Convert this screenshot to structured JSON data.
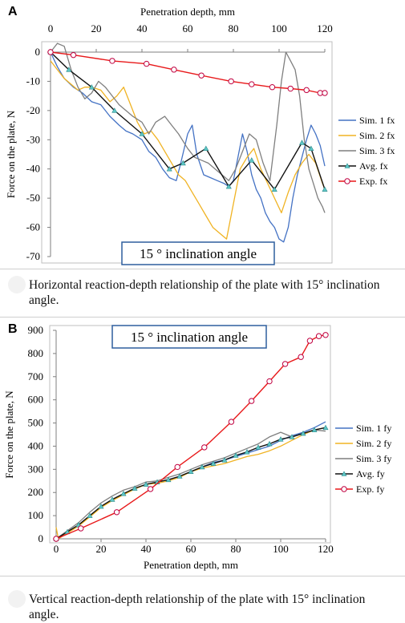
{
  "chart_data": [
    {
      "panel_label": "A",
      "type": "line",
      "xlabel": "Penetration depth, mm",
      "ylabel": "Force on the plate, N",
      "x_axis_position": "top",
      "xlim": [
        0,
        120
      ],
      "ylim": [
        -70,
        0
      ],
      "xticks": [
        0,
        20,
        40,
        60,
        80,
        100,
        120
      ],
      "yticks": [
        0,
        -10,
        -20,
        -30,
        -40,
        -50,
        -60,
        -70
      ],
      "grid": false,
      "legend_position": "right",
      "annotation": "15 ° inclination angle",
      "series": [
        {
          "name": "Sim. 1 fx",
          "color": "#4472c4",
          "marker": "none",
          "x": [
            0,
            3,
            6,
            10,
            14,
            18,
            22,
            26,
            30,
            33,
            36,
            40,
            43,
            46,
            49,
            52,
            55,
            57,
            60,
            62,
            64,
            67,
            70,
            73,
            76,
            78,
            80,
            82,
            84,
            86,
            88,
            90,
            92,
            94,
            96,
            98,
            100,
            102,
            104,
            106,
            108,
            110,
            112,
            114,
            116,
            118,
            120
          ],
          "y": [
            0,
            -5,
            -9,
            -12,
            -14,
            -17,
            -18,
            -22,
            -25,
            -27,
            -28,
            -30,
            -34,
            -36,
            -40,
            -43,
            -44,
            -38,
            -28,
            -25,
            -35,
            -42,
            -43,
            -44,
            -45,
            -46,
            -44,
            -36,
            -28,
            -34,
            -42,
            -47,
            -50,
            -55,
            -58,
            -60,
            -64,
            -65,
            -60,
            -50,
            -42,
            -36,
            -30,
            -25,
            -28,
            -32,
            -39
          ]
        },
        {
          "name": "Sim. 2 fx",
          "color": "#f0b323",
          "marker": "none",
          "x": [
            0,
            3,
            6,
            9,
            12,
            15,
            18,
            22,
            26,
            29,
            32,
            35,
            38,
            41,
            44,
            47,
            50,
            53,
            56,
            59,
            62,
            65,
            68,
            71,
            74,
            77,
            80,
            83,
            86,
            89,
            92,
            95,
            98,
            101,
            104,
            107,
            110,
            113,
            116,
            119,
            120
          ],
          "y": [
            -3,
            -6,
            -9,
            -11,
            -13,
            -12,
            -12,
            -13,
            -17,
            -15,
            -12,
            -18,
            -24,
            -28,
            -27,
            -30,
            -34,
            -38,
            -42,
            -44,
            -48,
            -52,
            -56,
            -60,
            -62,
            -64,
            -52,
            -40,
            -36,
            -33,
            -40,
            -45,
            -50,
            -55,
            -48,
            -42,
            -38,
            -35,
            -38,
            -45,
            -47
          ]
        },
        {
          "name": "Sim. 3 fx",
          "color": "#7f7f7f",
          "marker": "none",
          "x": [
            0,
            3,
            6,
            9,
            12,
            15,
            18,
            21,
            24,
            27,
            30,
            33,
            36,
            40,
            43,
            46,
            50,
            53,
            56,
            60,
            63,
            66,
            69,
            72,
            75,
            78,
            81,
            84,
            87,
            90,
            93,
            96,
            99,
            101,
            103,
            105,
            107,
            109,
            111,
            113,
            115,
            117,
            119,
            120
          ],
          "y": [
            0,
            3,
            2,
            -6,
            -12,
            -16,
            -14,
            -10,
            -12,
            -15,
            -18,
            -20,
            -22,
            -24,
            -28,
            -24,
            -22,
            -25,
            -28,
            -33,
            -36,
            -37,
            -38,
            -40,
            -42,
            -44,
            -40,
            -34,
            -28,
            -30,
            -38,
            -44,
            -25,
            -10,
            0,
            -3,
            -6,
            -15,
            -30,
            -40,
            -45,
            -50,
            -53,
            -55
          ]
        },
        {
          "name": "Avg. fx",
          "color": "#111111",
          "marker": "triangle",
          "x": [
            0,
            8,
            18,
            28,
            40,
            52,
            58,
            68,
            78,
            88,
            98,
            110,
            114,
            120
          ],
          "y": [
            0,
            -6,
            -12,
            -20,
            -28,
            -40,
            -38,
            -33,
            -46,
            -37,
            -47,
            -31,
            -33,
            -47
          ]
        },
        {
          "name": "Exp. fx",
          "color": "#e8191a",
          "marker": "circle",
          "x": [
            0,
            10,
            27,
            42,
            54,
            66,
            79,
            88,
            97,
            105,
            112,
            118,
            120
          ],
          "y": [
            0,
            -1,
            -3,
            -4,
            -6,
            -8,
            -10,
            -11,
            -12,
            -12.5,
            -13,
            -14,
            -14
          ]
        }
      ]
    },
    {
      "panel_label": "B",
      "type": "line",
      "xlabel": "Penetration depth, mm",
      "ylabel": "Force on the plate, N",
      "x_axis_position": "bottom",
      "xlim": [
        0,
        120
      ],
      "ylim": [
        0,
        900
      ],
      "xticks": [
        0,
        20,
        40,
        60,
        80,
        100,
        120
      ],
      "yticks": [
        0,
        100,
        200,
        300,
        400,
        500,
        600,
        700,
        800,
        900
      ],
      "grid": false,
      "legend_position": "right",
      "annotation": "15 ° inclination angle",
      "series": [
        {
          "name": "Sim. 1 fy",
          "color": "#4472c4",
          "marker": "none",
          "x": [
            0,
            5,
            10,
            15,
            20,
            25,
            30,
            35,
            40,
            45,
            50,
            55,
            60,
            65,
            70,
            75,
            80,
            85,
            90,
            95,
            100,
            105,
            110,
            115,
            120
          ],
          "y": [
            0,
            30,
            60,
            100,
            140,
            170,
            195,
            215,
            235,
            245,
            255,
            270,
            290,
            310,
            330,
            340,
            355,
            370,
            385,
            400,
            425,
            445,
            460,
            480,
            505
          ]
        },
        {
          "name": "Sim. 2 fy",
          "color": "#f0b323",
          "marker": "none",
          "x": [
            0,
            1,
            5,
            10,
            15,
            20,
            25,
            30,
            35,
            40,
            45,
            50,
            55,
            60,
            65,
            70,
            75,
            80,
            85,
            90,
            95,
            100,
            105,
            110,
            115,
            120
          ],
          "y": [
            50,
            0,
            25,
            55,
            95,
            135,
            165,
            190,
            215,
            235,
            240,
            250,
            265,
            290,
            305,
            315,
            325,
            340,
            355,
            365,
            380,
            400,
            425,
            450,
            470,
            480
          ]
        },
        {
          "name": "Sim. 3 fy",
          "color": "#7f7f7f",
          "marker": "none",
          "x": [
            0,
            5,
            10,
            15,
            20,
            25,
            30,
            35,
            40,
            45,
            50,
            55,
            60,
            65,
            70,
            75,
            80,
            85,
            90,
            95,
            100,
            105,
            110,
            115,
            120
          ],
          "y": [
            0,
            35,
            70,
            115,
            155,
            185,
            210,
            225,
            245,
            250,
            265,
            280,
            300,
            320,
            335,
            350,
            370,
            390,
            410,
            440,
            460,
            440,
            455,
            470,
            465
          ]
        },
        {
          "name": "Avg. fy",
          "color": "#111111",
          "marker": "triangle",
          "x": [
            0,
            5,
            10,
            15,
            20,
            25,
            30,
            35,
            40,
            45,
            50,
            55,
            60,
            65,
            70,
            75,
            80,
            85,
            90,
            95,
            100,
            105,
            110,
            115,
            120
          ],
          "y": [
            0,
            30,
            60,
            100,
            140,
            170,
            195,
            218,
            235,
            245,
            255,
            270,
            290,
            310,
            325,
            340,
            360,
            375,
            395,
            410,
            430,
            440,
            455,
            470,
            480
          ]
        },
        {
          "name": "Exp. fy",
          "color": "#e8191a",
          "marker": "circle",
          "x": [
            0,
            11,
            27,
            42,
            54,
            66,
            78,
            87,
            95,
            102,
            109,
            113,
            117,
            120
          ],
          "y": [
            0,
            45,
            115,
            215,
            310,
            395,
            505,
            595,
            680,
            755,
            785,
            855,
            875,
            880
          ]
        }
      ]
    }
  ],
  "captions": {
    "a": "Horizontal reaction-depth relationship of the plate with 15° inclination angle.",
    "b": "Vertical reaction-depth relationship of the plate with 15° inclination angle."
  }
}
